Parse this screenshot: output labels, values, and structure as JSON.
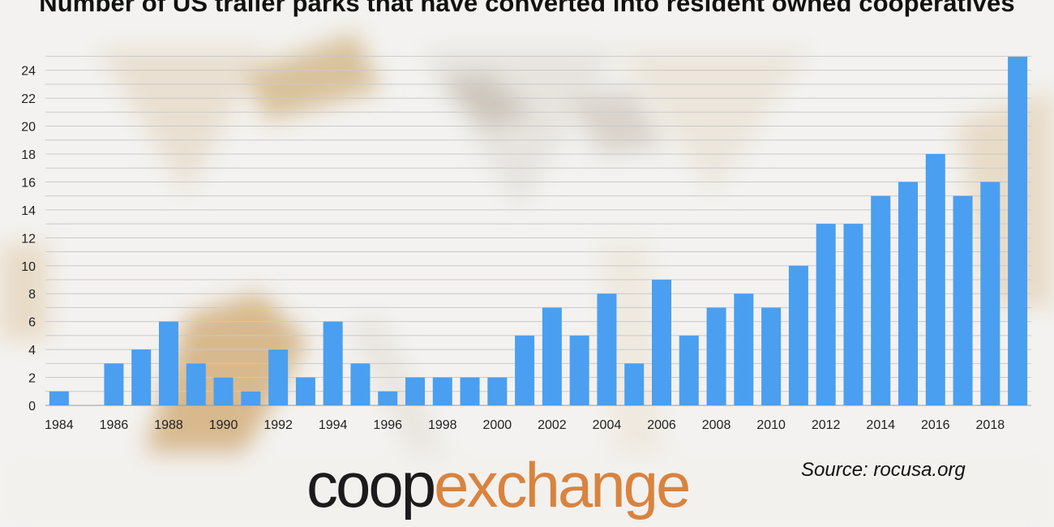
{
  "chart_data": {
    "type": "bar",
    "title": "Number of US trailer parks that have converted into resident owned cooperatives",
    "xlabel": "",
    "ylabel": "",
    "categories": [
      "1984",
      "1985",
      "1986",
      "1987",
      "1988",
      "1989",
      "1990",
      "1991",
      "1992",
      "1993",
      "1994",
      "1995",
      "1996",
      "1997",
      "1998",
      "1999",
      "2000",
      "2001",
      "2002",
      "2003",
      "2004",
      "2005",
      "2006",
      "2007",
      "2008",
      "2009",
      "2010",
      "2011",
      "2012",
      "2013",
      "2014",
      "2015",
      "2016",
      "2017",
      "2018",
      "2019"
    ],
    "x_tick_labels": [
      "1984",
      "1986",
      "1988",
      "1990",
      "1992",
      "1994",
      "1996",
      "1998",
      "2000",
      "2002",
      "2004",
      "2006",
      "2008",
      "2010",
      "2012",
      "2014",
      "2016",
      "2018"
    ],
    "values": [
      1,
      0,
      3,
      4,
      6,
      3,
      2,
      1,
      4,
      2,
      6,
      3,
      1,
      2,
      2,
      2,
      2,
      5,
      7,
      5,
      8,
      3,
      9,
      5,
      7,
      8,
      7,
      10,
      13,
      13,
      15,
      16,
      18,
      15,
      16,
      25
    ],
    "ylim": [
      0,
      25
    ],
    "y_ticks": [
      0,
      2,
      4,
      6,
      8,
      10,
      12,
      14,
      16,
      18,
      20,
      22,
      24
    ],
    "grid": true,
    "bar_color": "#4a9ff0"
  },
  "logo": {
    "part1": "coop",
    "part2": "exchange"
  },
  "source": "Source: rocusa.org"
}
